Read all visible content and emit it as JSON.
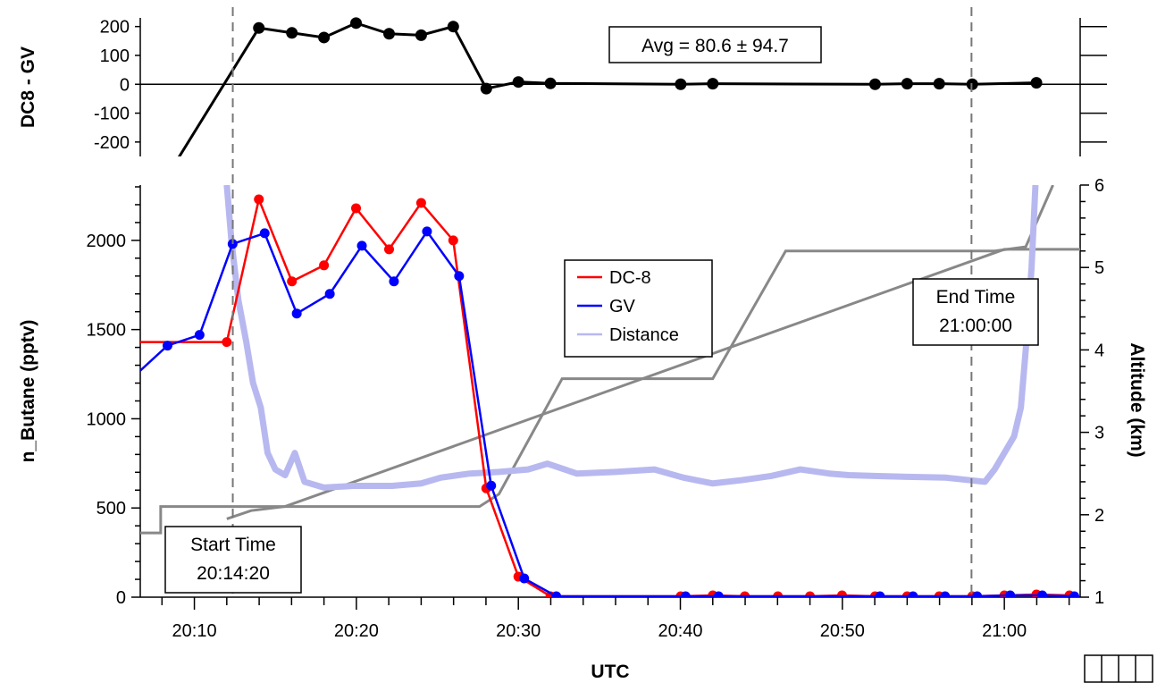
{
  "chart_data": [
    {
      "type": "line",
      "panel": "top",
      "ylabel": "DC8 - GV",
      "ylim": [
        -250,
        230
      ],
      "yticks": [
        200,
        100,
        0,
        -100,
        -200
      ],
      "annotation": "Avg = 80.6 ± 94.7",
      "series": [
        {
          "color": "#000000",
          "points": [
            [
              20.12,
              -420
            ],
            [
              20.233,
              195
            ],
            [
              20.267,
              178
            ],
            [
              20.3,
              162
            ],
            [
              20.333,
              212
            ],
            [
              20.367,
              175
            ],
            [
              20.4,
              170
            ],
            [
              20.433,
              200
            ],
            [
              20.467,
              -15
            ],
            [
              20.5,
              8
            ],
            [
              20.533,
              3
            ],
            [
              20.667,
              0
            ],
            [
              20.7,
              2
            ],
            [
              20.867,
              0
            ],
            [
              20.9,
              2
            ],
            [
              20.933,
              2
            ],
            [
              20.967,
              0
            ],
            [
              21.033,
              5
            ]
          ]
        }
      ]
    },
    {
      "type": "line",
      "panel": "bottom",
      "xlabel": "UTC",
      "ylabel": "n_Butane (pptv)",
      "y2label": "Altitude (km)",
      "xlim": [
        20.111,
        21.078
      ],
      "ylim": [
        0,
        2310
      ],
      "y2lim": [
        1,
        6
      ],
      "xticks": [
        "20:10",
        "20:20",
        "20:30",
        "20:40",
        "20:50",
        "21:00"
      ],
      "yticks": [
        0,
        500,
        1000,
        1500,
        2000
      ],
      "y2ticks": [
        1,
        2,
        3,
        4,
        5,
        6
      ],
      "legend": [
        "DC-8",
        "GV",
        "Distance"
      ],
      "legend_position": "center",
      "series": [
        {
          "name": "DC-8",
          "color": "#ff0000",
          "points": [
            [
              20.111,
              1430
            ],
            [
              20.2,
              1430
            ],
            [
              20.233,
              2230
            ],
            [
              20.267,
              1770
            ],
            [
              20.3,
              1860
            ],
            [
              20.333,
              2180
            ],
            [
              20.367,
              1950
            ],
            [
              20.4,
              2210
            ],
            [
              20.433,
              2000
            ],
            [
              20.467,
              610
            ],
            [
              20.5,
              115
            ],
            [
              20.533,
              5
            ],
            [
              20.667,
              5
            ],
            [
              20.7,
              10
            ],
            [
              20.733,
              5
            ],
            [
              20.767,
              5
            ],
            [
              20.8,
              5
            ],
            [
              20.833,
              10
            ],
            [
              20.867,
              5
            ],
            [
              20.9,
              5
            ],
            [
              20.933,
              5
            ],
            [
              20.967,
              5
            ],
            [
              21.0,
              10
            ],
            [
              21.033,
              15
            ],
            [
              21.067,
              10
            ]
          ]
        },
        {
          "name": "GV",
          "color": "#0000ff",
          "points": [
            [
              20.111,
              1270
            ],
            [
              20.139,
              1410
            ],
            [
              20.172,
              1470
            ],
            [
              20.206,
              1980
            ],
            [
              20.239,
              2040
            ],
            [
              20.272,
              1590
            ],
            [
              20.306,
              1700
            ],
            [
              20.339,
              1970
            ],
            [
              20.372,
              1770
            ],
            [
              20.406,
              2050
            ],
            [
              20.439,
              1800
            ],
            [
              20.472,
              625
            ],
            [
              20.506,
              105
            ],
            [
              20.539,
              5
            ],
            [
              20.672,
              5
            ],
            [
              20.706,
              5
            ],
            [
              20.872,
              5
            ],
            [
              20.906,
              5
            ],
            [
              20.939,
              5
            ],
            [
              20.972,
              5
            ],
            [
              21.006,
              10
            ],
            [
              21.039,
              10
            ],
            [
              21.072,
              5
            ]
          ]
        },
        {
          "name": "Distance",
          "color": "#b8b8f0",
          "axis": "right",
          "points": [
            [
              20.2,
              6.0
            ],
            [
              20.205,
              5.3
            ],
            [
              20.212,
              4.6
            ],
            [
              20.22,
              4.1
            ],
            [
              20.227,
              3.6
            ],
            [
              20.235,
              3.3
            ],
            [
              20.242,
              2.75
            ],
            [
              20.25,
              2.55
            ],
            [
              20.26,
              2.48
            ],
            [
              20.27,
              2.75
            ],
            [
              20.28,
              2.4
            ],
            [
              20.3,
              2.33
            ],
            [
              20.33,
              2.35
            ],
            [
              20.37,
              2.35
            ],
            [
              20.4,
              2.38
            ],
            [
              20.42,
              2.45
            ],
            [
              20.45,
              2.5
            ],
            [
              20.48,
              2.52
            ],
            [
              20.51,
              2.55
            ],
            [
              20.53,
              2.62
            ],
            [
              20.56,
              2.5
            ],
            [
              20.6,
              2.52
            ],
            [
              20.64,
              2.55
            ],
            [
              20.67,
              2.45
            ],
            [
              20.7,
              2.38
            ],
            [
              20.73,
              2.42
            ],
            [
              20.76,
              2.47
            ],
            [
              20.79,
              2.55
            ],
            [
              20.82,
              2.5
            ],
            [
              20.84,
              2.48
            ],
            [
              20.87,
              2.47
            ],
            [
              20.9,
              2.46
            ],
            [
              20.94,
              2.45
            ],
            [
              20.98,
              2.4
            ],
            [
              20.99,
              2.55
            ],
            [
              21.0,
              2.75
            ],
            [
              21.01,
              2.95
            ],
            [
              21.017,
              3.3
            ],
            [
              21.022,
              4.0
            ],
            [
              21.028,
              5.0
            ],
            [
              21.032,
              6.0
            ]
          ]
        },
        {
          "name": "Altitude",
          "color": "#888888",
          "axis": "right",
          "points": [
            [
              20.111,
              1.78
            ],
            [
              20.132,
              1.78
            ],
            [
              20.132,
              2.1
            ],
            [
              20.46,
              2.1
            ],
            [
              20.48,
              2.25
            ],
            [
              20.545,
              3.65
            ],
            [
              20.7,
              3.65
            ],
            [
              20.775,
              5.2
            ],
            [
              20.99,
              5.2
            ],
            [
              21.022,
              5.25
            ],
            [
              21.05,
              6.0
            ]
          ]
        },
        {
          "name": "Altitude (GV)",
          "color": "#888888",
          "axis": "right",
          "points": [
            [
              20.2,
              1.95
            ],
            [
              20.225,
              2.05
            ],
            [
              20.26,
              2.1
            ],
            [
              21.0,
              5.22
            ],
            [
              21.078,
              5.22
            ]
          ]
        }
      ]
    }
  ],
  "annotations": {
    "start_label": "Start Time",
    "start_time": "20:14:20",
    "end_label": "End Time",
    "end_time": "21:00:00"
  }
}
